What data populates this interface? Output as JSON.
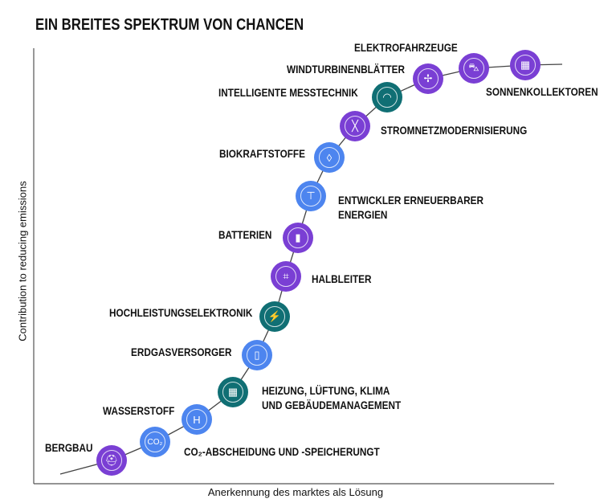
{
  "title": "EIN BREITES SPEKTRUM VON CHANCEN",
  "y_axis_label": "Contribution to reducing emissions",
  "x_axis_label": "Anerkennung des marktes als Lösung",
  "colors": {
    "purple": "#7a3fd4",
    "blue": "#4d85ef",
    "teal": "#106f74",
    "line": "#444444"
  },
  "items": [
    {
      "label": "BERGBAU",
      "color": "purple",
      "icon": "hard-hat-icon",
      "glyph": "⛑"
    },
    {
      "label": "CO₂-ABSCHEIDUNG UND -SPEICHERUNGT",
      "color": "blue",
      "icon": "co2-icon",
      "glyph": "CO₂"
    },
    {
      "label": "WASSERSTOFF",
      "color": "blue",
      "icon": "hydrogen-icon",
      "glyph": "H"
    },
    {
      "label": "HEIZUNG, LÜFTUNG, KLIMA",
      "label2": "UND GEBÄUDEMANAGEMENT",
      "color": "teal",
      "icon": "building-icon",
      "glyph": "▦"
    },
    {
      "label": "ERDGASVERSORGER",
      "color": "blue",
      "icon": "gas-cylinder-icon",
      "glyph": "▯"
    },
    {
      "label": "HOCHLEISTUNGSELEKTRONIK",
      "color": "teal",
      "icon": "lightning-icon",
      "glyph": "⚡"
    },
    {
      "label": "HALBLEITER",
      "color": "purple",
      "icon": "chip-icon",
      "glyph": "⌗"
    },
    {
      "label": "BATTERIEN",
      "color": "purple",
      "icon": "battery-icon",
      "glyph": "▮"
    },
    {
      "label": "ENTWICKLER ERNEUERBARER",
      "label2": "ENERGIEN",
      "color": "blue",
      "icon": "crane-icon",
      "glyph": "⊤"
    },
    {
      "label": "BIOKRAFTSTOFFE",
      "color": "blue",
      "icon": "drop-icon",
      "glyph": "◊"
    },
    {
      "label": "STROMNETZMODERNISIERUNG",
      "color": "purple",
      "icon": "power-pylon-icon",
      "glyph": "╳"
    },
    {
      "label": "INTELLIGENTE MESSTECHNIK",
      "color": "teal",
      "icon": "meter-gauge-icon",
      "glyph": "◠"
    },
    {
      "label": "WINDTURBINENBLÄTTER",
      "color": "purple",
      "icon": "wind-turbine-icon",
      "glyph": "✢"
    },
    {
      "label": "ELEKTROFAHRZEUGE",
      "color": "purple",
      "icon": "car-icon",
      "glyph": "⛍"
    },
    {
      "label": "SONNENKOLLEKTOREN",
      "color": "purple",
      "icon": "solar-panel-icon",
      "glyph": "▦"
    }
  ]
}
